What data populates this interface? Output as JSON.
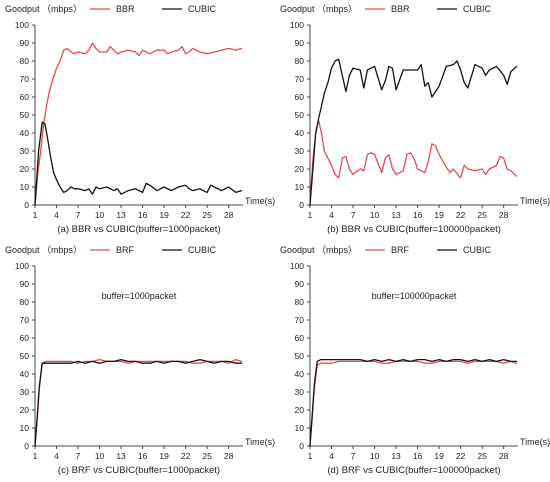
{
  "colors": {
    "red": "#e8494f",
    "black": "#111111",
    "axis": "#444444"
  },
  "chart_data": [
    {
      "type": "line",
      "ylabel": "Goodput （mbps）",
      "xlabel": "Time(s)",
      "caption": "(a) BBR vs CUBIC(buffer=1000packet)",
      "annotation": "",
      "ylim": [
        0,
        100
      ],
      "xlim": [
        1,
        30
      ],
      "yticks": [
        0,
        10,
        20,
        30,
        40,
        50,
        60,
        70,
        80,
        90,
        100
      ],
      "xticks": [
        1,
        4,
        7,
        10,
        13,
        16,
        19,
        22,
        25,
        28
      ],
      "legend_position": "top-center",
      "series": [
        {
          "name": "BBR",
          "color": "#e8494f",
          "x": [
            1,
            1.4,
            1.8,
            2.2,
            2.6,
            3,
            3.5,
            4,
            4.5,
            5,
            5.5,
            6,
            6.5,
            7,
            8,
            8.5,
            9,
            9.5,
            10,
            11,
            11.5,
            12,
            12.5,
            13,
            14,
            15,
            15.5,
            16,
            16.5,
            17,
            18,
            19,
            19.5,
            20,
            21,
            21.5,
            22,
            22.5,
            23,
            24,
            25,
            26,
            27,
            28,
            29,
            29.8
          ],
          "values": [
            0,
            18,
            30,
            45,
            55,
            63,
            70,
            76,
            80,
            86,
            87,
            85,
            84,
            85,
            84,
            86,
            90,
            87,
            85,
            85,
            88,
            86,
            84,
            85,
            86,
            85,
            83,
            86,
            85,
            84,
            86,
            86,
            84,
            85,
            86,
            88,
            84,
            85,
            87,
            85,
            84,
            85,
            86,
            87,
            86,
            87
          ]
        },
        {
          "name": "CUBIC",
          "color": "#111111",
          "x": [
            1,
            1.5,
            2,
            2.4,
            2.8,
            3.2,
            3.6,
            4,
            4.5,
            5,
            5.5,
            6,
            6.5,
            7,
            8,
            8.5,
            9,
            9.5,
            10,
            11,
            12,
            12.5,
            13,
            14,
            15,
            16,
            16.5,
            17,
            18,
            19,
            20,
            21,
            22,
            22.5,
            23,
            24,
            25,
            25.5,
            26,
            27,
            28,
            29,
            29.8
          ],
          "values": [
            0,
            30,
            46,
            45,
            36,
            26,
            18,
            14,
            10,
            7,
            8,
            10,
            9,
            9,
            8,
            9,
            6,
            10,
            9,
            10,
            8,
            9,
            6,
            8,
            9,
            7,
            12,
            11,
            8,
            10,
            8,
            10,
            11,
            9,
            8,
            9,
            7,
            11,
            10,
            8,
            10,
            7,
            8
          ]
        }
      ]
    },
    {
      "type": "line",
      "ylabel": "Goodput （mbps）",
      "xlabel": "Time(s)",
      "caption": "(b) BBR vs CUBIC(buffer=100000packet)",
      "annotation": "",
      "ylim": [
        0,
        100
      ],
      "xlim": [
        1,
        30
      ],
      "yticks": [
        0,
        10,
        20,
        30,
        40,
        50,
        60,
        70,
        80,
        90,
        100
      ],
      "xticks": [
        1,
        4,
        7,
        10,
        13,
        16,
        19,
        22,
        25,
        28
      ],
      "legend_position": "top-center",
      "series": [
        {
          "name": "BBR",
          "color": "#e8494f",
          "x": [
            1,
            1.4,
            1.8,
            2.2,
            2.6,
            3,
            3.5,
            4,
            4.5,
            5,
            5.5,
            6,
            6.5,
            7,
            8,
            8.5,
            9,
            9.5,
            10,
            11,
            11.5,
            12,
            12.5,
            13,
            14,
            14.5,
            15,
            15.5,
            16,
            17,
            17.5,
            18,
            18.5,
            19,
            20,
            20.5,
            21,
            22,
            22.5,
            23,
            24,
            25,
            25.5,
            26,
            27,
            27.5,
            28,
            28.5,
            29,
            29.8
          ],
          "values": [
            0,
            25,
            40,
            47,
            40,
            30,
            26,
            22,
            17,
            15,
            26,
            27,
            20,
            17,
            20,
            19,
            28,
            29,
            28,
            18,
            26,
            28,
            20,
            17,
            19,
            28,
            29,
            26,
            20,
            18,
            24,
            34,
            33,
            28,
            21,
            18,
            20,
            15,
            22,
            20,
            19,
            20,
            17,
            20,
            22,
            27,
            26,
            20,
            19,
            16
          ]
        },
        {
          "name": "CUBIC",
          "color": "#111111",
          "x": [
            1,
            1.4,
            1.8,
            2.2,
            2.6,
            3,
            3.5,
            4,
            4.5,
            5,
            5.5,
            6,
            6.5,
            7,
            8,
            8.5,
            9,
            9.5,
            10,
            11,
            11.5,
            12,
            12.5,
            13,
            14,
            15,
            16,
            16.5,
            17,
            17.5,
            18,
            19,
            20,
            21,
            21.5,
            22,
            22.5,
            23,
            24,
            25,
            25.5,
            26,
            27,
            28,
            28.5,
            29,
            29.8
          ],
          "values": [
            0,
            20,
            40,
            48,
            55,
            62,
            68,
            76,
            80,
            81,
            72,
            63,
            72,
            76,
            75,
            65,
            75,
            76,
            77,
            64,
            69,
            77,
            76,
            64,
            75,
            75,
            75,
            78,
            66,
            68,
            60,
            66,
            77,
            78,
            80,
            75,
            68,
            65,
            78,
            76,
            72,
            75,
            77,
            72,
            67,
            74,
            77
          ]
        }
      ]
    },
    {
      "type": "line",
      "ylabel": "Goodput （mbps）",
      "xlabel": "Time(s)",
      "caption": "(c) BRF vs CUBIC(buffer=1000packet)",
      "annotation": "buffer=1000packet",
      "ylim": [
        0,
        100
      ],
      "xlim": [
        1,
        30
      ],
      "yticks": [
        0,
        10,
        20,
        30,
        40,
        50,
        60,
        70,
        80,
        90,
        100
      ],
      "xticks": [
        1,
        4,
        7,
        10,
        13,
        16,
        19,
        22,
        25,
        28
      ],
      "legend_position": "top-center",
      "series": [
        {
          "name": "BRF",
          "color": "#e8494f",
          "x": [
            1,
            1.3,
            1.6,
            2,
            2.5,
            3,
            4,
            5,
            6,
            7,
            8,
            9,
            10,
            11,
            12,
            13,
            14,
            15,
            16,
            17,
            18,
            19,
            20,
            21,
            22,
            23,
            24,
            25,
            26,
            27,
            28,
            29,
            29.8
          ],
          "values": [
            0,
            15,
            32,
            46,
            47,
            47,
            47,
            47,
            47,
            46,
            47,
            47,
            48,
            47,
            47,
            47,
            46,
            47,
            47,
            47,
            47,
            47,
            47,
            47,
            47,
            46,
            46,
            47,
            47,
            47,
            46,
            48,
            47
          ]
        },
        {
          "name": "CUBIC",
          "color": "#111111",
          "x": [
            1,
            1.3,
            1.6,
            2,
            2.5,
            3,
            4,
            5,
            6,
            7,
            8,
            9,
            10,
            11,
            12,
            13,
            14,
            15,
            16,
            17,
            18,
            19,
            20,
            21,
            22,
            23,
            24,
            25,
            26,
            27,
            28,
            29,
            29.8
          ],
          "values": [
            0,
            16,
            33,
            46,
            46,
            46,
            46,
            46,
            46,
            47,
            46,
            47,
            46,
            47,
            47,
            48,
            47,
            47,
            46,
            46,
            47,
            46,
            47,
            47,
            46,
            47,
            48,
            47,
            46,
            47,
            47,
            46,
            46
          ]
        }
      ]
    },
    {
      "type": "line",
      "ylabel": "Goodput （mbps）",
      "xlabel": "Time(s)",
      "caption": "(d) BRF vs CUBIC(buffer=100000packet)",
      "annotation": "buffer=100000packet",
      "ylim": [
        0,
        100
      ],
      "xlim": [
        1,
        30
      ],
      "yticks": [
        0,
        10,
        20,
        30,
        40,
        50,
        60,
        70,
        80,
        90,
        100
      ],
      "xticks": [
        1,
        4,
        7,
        10,
        13,
        16,
        19,
        22,
        25,
        28
      ],
      "legend_position": "top-center",
      "series": [
        {
          "name": "BRF",
          "color": "#e8494f",
          "x": [
            1,
            1.3,
            1.6,
            2,
            2.5,
            3,
            4,
            5,
            6,
            7,
            8,
            9,
            10,
            11,
            12,
            13,
            14,
            15,
            16,
            17,
            18,
            19,
            20,
            21,
            22,
            23,
            24,
            25,
            26,
            27,
            28,
            29,
            29.8
          ],
          "values": [
            0,
            16,
            32,
            45,
            46,
            46,
            46,
            47,
            47,
            47,
            47,
            47,
            47,
            46,
            46,
            47,
            47,
            47,
            47,
            46,
            46,
            47,
            47,
            47,
            47,
            46,
            47,
            47,
            47,
            47,
            46,
            47,
            46
          ]
        },
        {
          "name": "CUBIC",
          "color": "#111111",
          "x": [
            1,
            1.3,
            1.6,
            2,
            2.5,
            3,
            4,
            5,
            6,
            7,
            8,
            9,
            10,
            11,
            12,
            13,
            14,
            15,
            16,
            17,
            18,
            19,
            20,
            21,
            22,
            23,
            24,
            25,
            26,
            27,
            28,
            29,
            29.8
          ],
          "values": [
            0,
            17,
            34,
            47,
            48,
            48,
            48,
            48,
            48,
            48,
            48,
            47,
            48,
            47,
            48,
            47,
            48,
            47,
            48,
            48,
            47,
            48,
            47,
            48,
            48,
            47,
            48,
            47,
            48,
            47,
            48,
            47,
            47
          ]
        }
      ]
    }
  ]
}
